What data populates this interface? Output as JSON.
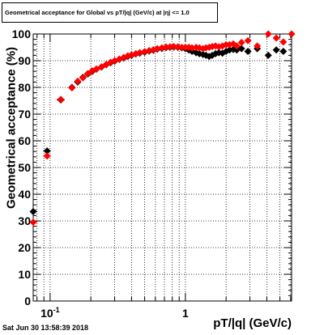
{
  "title": "Geometrical acceptance for Global vs pT/|q| (GeV/c) at |η| <= 1.0",
  "ylabel": "Geometrical acceptance (%)",
  "xlabel": "pT/|q| (GeV/c)",
  "datestamp": "Sat Jun 30 13:58:39 2018",
  "colors": {
    "series_black": "#000000",
    "series_red": "#ff0000",
    "grid": "#000000"
  },
  "chart_data": {
    "type": "scatter",
    "title": "Geometrical acceptance for Global vs pT/|q| (GeV/c) at |η| <= 1.0",
    "xlabel": "pT/|q| (GeV/c)",
    "ylabel": "Geometrical acceptance (%)",
    "x_scale": "log",
    "xlim": [
      0.075,
      6.1
    ],
    "ylim": [
      0,
      100
    ],
    "grid": true,
    "y_ticks": [
      0,
      10,
      20,
      30,
      40,
      50,
      60,
      70,
      80,
      90,
      100
    ],
    "x_tick_labels": [
      {
        "x": 0.1,
        "base": "10",
        "exp": "-1"
      },
      {
        "x": 1,
        "base": "1",
        "exp": ""
      }
    ],
    "series": [
      {
        "marker": "diamond",
        "color": "#000000",
        "points": [
          [
            0.075,
            33.5,
            0.005
          ],
          [
            0.095,
            56.2,
            0.0064
          ],
          [
            0.12,
            75.3,
            0.008
          ],
          [
            0.145,
            80.0,
            0.0045
          ],
          [
            0.16,
            82.0,
            0.0045
          ],
          [
            0.175,
            83.8,
            0.0045
          ],
          [
            0.19,
            85.0,
            0.005
          ],
          [
            0.205,
            86.0,
            0.005
          ],
          [
            0.22,
            86.8,
            0.005
          ],
          [
            0.24,
            87.6,
            0.006
          ],
          [
            0.26,
            88.5,
            0.006
          ],
          [
            0.28,
            89.2,
            0.006
          ],
          [
            0.3,
            89.8,
            0.007
          ],
          [
            0.325,
            90.5,
            0.008
          ],
          [
            0.35,
            91.0,
            0.008
          ],
          [
            0.375,
            91.6,
            0.008
          ],
          [
            0.4,
            92.0,
            0.009
          ],
          [
            0.43,
            92.5,
            0.01
          ],
          [
            0.46,
            92.8,
            0.01
          ],
          [
            0.5,
            93.2,
            0.011
          ],
          [
            0.54,
            93.6,
            0.012
          ],
          [
            0.58,
            93.9,
            0.013
          ],
          [
            0.62,
            94.3,
            0.014
          ],
          [
            0.67,
            94.6,
            0.015
          ],
          [
            0.72,
            94.9,
            0.016
          ],
          [
            0.77,
            95.0,
            0.017
          ],
          [
            0.82,
            95.1,
            0.018
          ],
          [
            0.88,
            95.0,
            0.019
          ],
          [
            0.94,
            94.8,
            0.02
          ],
          [
            1.0,
            94.5,
            0.022
          ],
          [
            1.06,
            94.0,
            0.024
          ],
          [
            1.12,
            93.5,
            0.026
          ],
          [
            1.2,
            93.0,
            0.028
          ],
          [
            1.27,
            92.6,
            0.03
          ],
          [
            1.35,
            92.3,
            0.03
          ],
          [
            1.42,
            92.0,
            0.03
          ],
          [
            1.5,
            91.6,
            0.035
          ],
          [
            1.58,
            92.0,
            0.035
          ],
          [
            1.67,
            92.6,
            0.035
          ],
          [
            1.77,
            93.0,
            0.04
          ],
          [
            1.88,
            92.8,
            0.04
          ],
          [
            2.0,
            93.5,
            0.045
          ],
          [
            2.12,
            94.0,
            0.05
          ],
          [
            2.26,
            94.2,
            0.05
          ],
          [
            2.4,
            94.0,
            0.06
          ],
          [
            2.6,
            94.5,
            0.07
          ],
          [
            2.9,
            93.5,
            0.1
          ],
          [
            3.4,
            94.5,
            0.15
          ],
          [
            4.1,
            92.0,
            0.2
          ],
          [
            4.7,
            94.0,
            0.2
          ],
          [
            5.3,
            93.5,
            0.25
          ]
        ]
      },
      {
        "marker": "diamond",
        "color": "#ff0000",
        "points": [
          [
            0.075,
            29.5,
            0.005
          ],
          [
            0.095,
            54.3,
            0.0064
          ],
          [
            0.12,
            75.5,
            0.008
          ],
          [
            0.145,
            79.8,
            0.0045
          ],
          [
            0.16,
            82.3,
            0.0045
          ],
          [
            0.175,
            83.6,
            0.0045
          ],
          [
            0.19,
            85.2,
            0.005
          ],
          [
            0.205,
            86.2,
            0.005
          ],
          [
            0.22,
            86.9,
            0.005
          ],
          [
            0.24,
            87.7,
            0.006
          ],
          [
            0.26,
            88.6,
            0.006
          ],
          [
            0.28,
            89.4,
            0.006
          ],
          [
            0.3,
            90.0,
            0.007
          ],
          [
            0.325,
            90.6,
            0.008
          ],
          [
            0.35,
            91.2,
            0.008
          ],
          [
            0.375,
            91.8,
            0.008
          ],
          [
            0.4,
            92.2,
            0.009
          ],
          [
            0.43,
            92.6,
            0.01
          ],
          [
            0.46,
            93.0,
            0.01
          ],
          [
            0.5,
            93.4,
            0.011
          ],
          [
            0.54,
            93.8,
            0.012
          ],
          [
            0.58,
            94.1,
            0.013
          ],
          [
            0.62,
            94.5,
            0.014
          ],
          [
            0.67,
            94.8,
            0.015
          ],
          [
            0.72,
            95.1,
            0.016
          ],
          [
            0.77,
            95.2,
            0.017
          ],
          [
            0.82,
            95.3,
            0.018
          ],
          [
            0.88,
            95.2,
            0.019
          ],
          [
            0.94,
            95.0,
            0.02
          ],
          [
            1.0,
            95.0,
            0.022
          ],
          [
            1.06,
            95.0,
            0.024
          ],
          [
            1.12,
            94.8,
            0.026
          ],
          [
            1.2,
            95.0,
            0.028
          ],
          [
            1.27,
            94.8,
            0.03
          ],
          [
            1.35,
            94.5,
            0.03
          ],
          [
            1.42,
            94.8,
            0.03
          ],
          [
            1.5,
            95.0,
            0.035
          ],
          [
            1.58,
            95.3,
            0.035
          ],
          [
            1.67,
            95.5,
            0.035
          ],
          [
            1.77,
            95.2,
            0.04
          ],
          [
            1.88,
            95.5,
            0.04
          ],
          [
            2.0,
            96.0,
            0.045
          ],
          [
            2.12,
            96.0,
            0.05
          ],
          [
            2.26,
            96.3,
            0.05
          ],
          [
            2.4,
            95.5,
            0.06
          ],
          [
            2.6,
            96.8,
            0.07
          ],
          [
            2.9,
            97.5,
            0.1
          ],
          [
            3.4,
            95.5,
            0.15
          ],
          [
            4.1,
            100.0,
            0.2
          ],
          [
            4.7,
            98.5,
            0.2
          ],
          [
            5.3,
            97.0,
            0.25
          ],
          [
            6.1,
            100.0,
            0.3
          ]
        ]
      }
    ]
  }
}
